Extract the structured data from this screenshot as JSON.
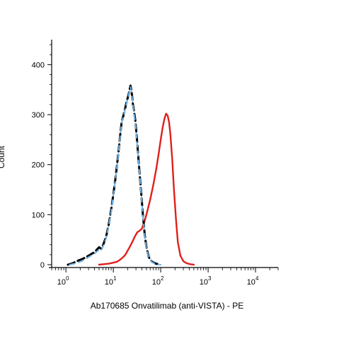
{
  "chart_data": {
    "type": "line",
    "title": "",
    "xlabel": "Ab170685 Onvatilimab (anti-VISTA) - PE",
    "ylabel": "Count",
    "x_scale": "log",
    "xlim": [
      0.5,
      30000
    ],
    "ylim": [
      0,
      450
    ],
    "x_ticks": [
      {
        "value": 1,
        "base": "10",
        "exp": "0"
      },
      {
        "value": 10,
        "base": "10",
        "exp": "1"
      },
      {
        "value": 100,
        "base": "10",
        "exp": "2"
      },
      {
        "value": 1000,
        "base": "10",
        "exp": "3"
      },
      {
        "value": 10000,
        "base": "10",
        "exp": "4"
      }
    ],
    "y_ticks": [
      "0",
      "100",
      "200",
      "300",
      "400"
    ],
    "y_tick_values": [
      0,
      100,
      200,
      300,
      400
    ],
    "grid": false,
    "legend": "none",
    "series": [
      {
        "color": "#000000",
        "style": "dashed",
        "x": [
          1.1,
          1.4,
          1.8,
          2.3,
          3,
          4,
          5,
          5.5,
          6,
          7,
          8,
          9,
          10,
          11,
          12,
          13,
          14,
          15,
          17,
          19,
          21,
          22,
          23,
          24,
          25,
          26,
          27,
          29,
          31,
          33,
          36,
          39,
          42,
          46,
          50,
          56,
          65,
          80,
          100
        ],
        "y": [
          0,
          3,
          8,
          12,
          18,
          25,
          35,
          32,
          38,
          55,
          80,
          110,
          140,
          170,
          200,
          230,
          260,
          285,
          305,
          325,
          340,
          350,
          358,
          350,
          335,
          320,
          310,
          290,
          260,
          225,
          180,
          140,
          100,
          60,
          35,
          15,
          6,
          2,
          0
        ]
      },
      {
        "color": "#6fb3e6",
        "style": "dashed",
        "x": [
          1.2,
          1.5,
          2,
          2.5,
          3,
          4,
          5,
          5.5,
          6,
          7,
          8,
          9,
          10,
          11,
          12,
          13,
          14,
          15,
          17,
          19,
          21,
          22,
          23,
          24,
          25,
          26,
          27,
          29,
          31,
          33,
          36,
          39,
          42,
          46,
          50,
          56,
          65,
          80,
          100
        ],
        "y": [
          0,
          2,
          6,
          10,
          15,
          22,
          30,
          28,
          35,
          52,
          78,
          105,
          138,
          168,
          198,
          228,
          258,
          283,
          303,
          322,
          338,
          348,
          355,
          347,
          332,
          318,
          305,
          285,
          255,
          222,
          178,
          138,
          98,
          58,
          32,
          14,
          5,
          1,
          0
        ]
      },
      {
        "color": "#e0201b",
        "style": "solid",
        "x": [
          5,
          8,
          10,
          12,
          14,
          16,
          18,
          20,
          22,
          25,
          28,
          32,
          36,
          40,
          45,
          50,
          60,
          70,
          80,
          90,
          100,
          110,
          120,
          130,
          140,
          150,
          160,
          175,
          190,
          210,
          230,
          260,
          300,
          350,
          420,
          500
        ],
        "y": [
          0,
          2,
          4,
          6,
          10,
          15,
          20,
          28,
          35,
          45,
          55,
          65,
          68,
          72,
          85,
          100,
          130,
          160,
          190,
          220,
          250,
          275,
          292,
          302,
          298,
          285,
          260,
          210,
          150,
          90,
          45,
          18,
          7,
          3,
          1,
          0
        ]
      }
    ]
  }
}
